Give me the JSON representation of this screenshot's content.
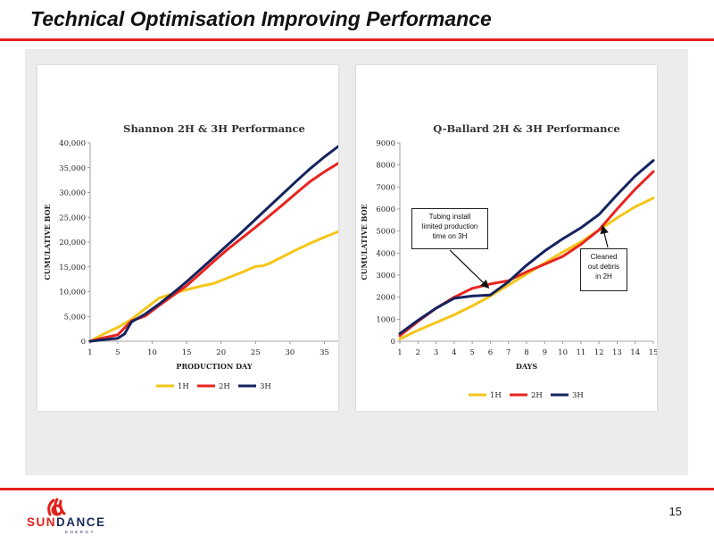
{
  "slide": {
    "title": "Technical Optimisation Improving Performance",
    "page_number": "15"
  },
  "logo": {
    "text": "SUNDANCE",
    "tagline": "ENERGY",
    "icon": "sundance-sun-icon",
    "colors": {
      "red": "#e3201b",
      "navy": "#1b2a5c"
    }
  },
  "colors": {
    "accent_red": "#e3201b",
    "panel_gray": "#ececec",
    "series_1H": "#f5c518",
    "series_2H": "#e8241f",
    "series_3H": "#15235e"
  },
  "chart_data": [
    {
      "type": "line",
      "title": "Shannon 2H & 3H Performance",
      "xlabel": "PRODUCTION DAY",
      "ylabel": "CUMULATIVE BOE",
      "xlim": [
        1,
        37
      ],
      "ylim": [
        0,
        40000
      ],
      "xticks": [
        1,
        5,
        10,
        15,
        20,
        25,
        30,
        35
      ],
      "yticks": [
        0,
        5000,
        10000,
        15000,
        20000,
        25000,
        30000,
        35000,
        40000
      ],
      "ytick_labels": [
        "0",
        "5,000",
        "10,000",
        "15,000",
        "20,000",
        "25,000",
        "30,000",
        "35,000",
        "40,000"
      ],
      "grid": false,
      "legend": "bottom",
      "series": [
        {
          "name": "1H",
          "color": "#f5c518",
          "x": [
            1,
            3,
            5,
            7,
            9,
            11,
            13,
            15,
            17,
            19,
            21,
            23,
            25,
            26,
            27,
            29,
            31,
            33,
            35,
            37
          ],
          "y": [
            0,
            1500,
            2800,
            4400,
            6600,
            8700,
            9600,
            10400,
            11100,
            11700,
            12800,
            13900,
            15100,
            15200,
            15700,
            17100,
            18500,
            19800,
            21000,
            22100
          ]
        },
        {
          "name": "2H",
          "color": "#e8241f",
          "x": [
            1,
            3,
            5,
            6,
            7,
            9,
            11,
            13,
            15,
            17,
            19,
            21,
            23,
            25,
            27,
            29,
            31,
            33,
            35,
            37
          ],
          "y": [
            0,
            700,
            1300,
            2700,
            4100,
            5100,
            7200,
            9200,
            11200,
            13700,
            16200,
            18600,
            20800,
            23000,
            25300,
            27600,
            30000,
            32300,
            34200,
            35900
          ]
        },
        {
          "name": "3H",
          "color": "#15235e",
          "x": [
            1,
            3,
            5,
            6,
            7,
            9,
            11,
            13,
            15,
            17,
            19,
            21,
            23,
            25,
            27,
            29,
            31,
            33,
            35,
            37
          ],
          "y": [
            0,
            300,
            600,
            1500,
            3900,
            5500,
            7500,
            9700,
            12000,
            14500,
            17000,
            19500,
            22000,
            24600,
            27200,
            29800,
            32400,
            34900,
            37200,
            39300
          ]
        }
      ]
    },
    {
      "type": "line",
      "title": "Q-Ballard 2H & 3H Performance",
      "xlabel": "DAYS",
      "ylabel": "CUMULATIVE BOE",
      "xlim": [
        1,
        15
      ],
      "ylim": [
        0,
        9000
      ],
      "xticks": [
        1,
        2,
        3,
        4,
        5,
        6,
        7,
        8,
        9,
        10,
        11,
        12,
        13,
        14,
        15
      ],
      "yticks": [
        0,
        1000,
        2000,
        3000,
        4000,
        5000,
        6000,
        7000,
        8000,
        9000
      ],
      "ytick_labels": [
        "0",
        "1000",
        "2000",
        "3000",
        "4000",
        "5000",
        "6000",
        "7000",
        "8000",
        "9000"
      ],
      "grid": false,
      "legend": "bottom",
      "annotations": [
        {
          "text": "Tubing install\nlimited production\ntime on 3H",
          "target_x": 6,
          "target_y": 2100
        },
        {
          "text": "Cleaned\nout debris\nin 2H",
          "target_x": 12,
          "target_y": 4900
        }
      ],
      "series": [
        {
          "name": "1H",
          "color": "#f5c518",
          "x": [
            1,
            2,
            3,
            4,
            5,
            6,
            7,
            8,
            9,
            10,
            11,
            12,
            13,
            14,
            15
          ],
          "y": [
            100,
            500,
            850,
            1200,
            1600,
            2050,
            2550,
            3050,
            3550,
            4050,
            4500,
            5050,
            5600,
            6100,
            6500
          ]
        },
        {
          "name": "2H",
          "color": "#e8241f",
          "x": [
            1,
            2,
            3,
            4,
            5,
            6,
            7,
            8,
            9,
            10,
            11,
            12,
            13,
            14,
            15
          ],
          "y": [
            250,
            900,
            1500,
            2000,
            2400,
            2600,
            2750,
            3150,
            3500,
            3850,
            4400,
            5050,
            6000,
            6900,
            7700
          ]
        },
        {
          "name": "3H",
          "color": "#15235e",
          "x": [
            1,
            2,
            3,
            4,
            5,
            6,
            7,
            8,
            9,
            10,
            11,
            12,
            13,
            14,
            15
          ],
          "y": [
            350,
            950,
            1500,
            1950,
            2050,
            2100,
            2700,
            3450,
            4100,
            4650,
            5150,
            5750,
            6650,
            7500,
            8200
          ]
        }
      ]
    }
  ]
}
